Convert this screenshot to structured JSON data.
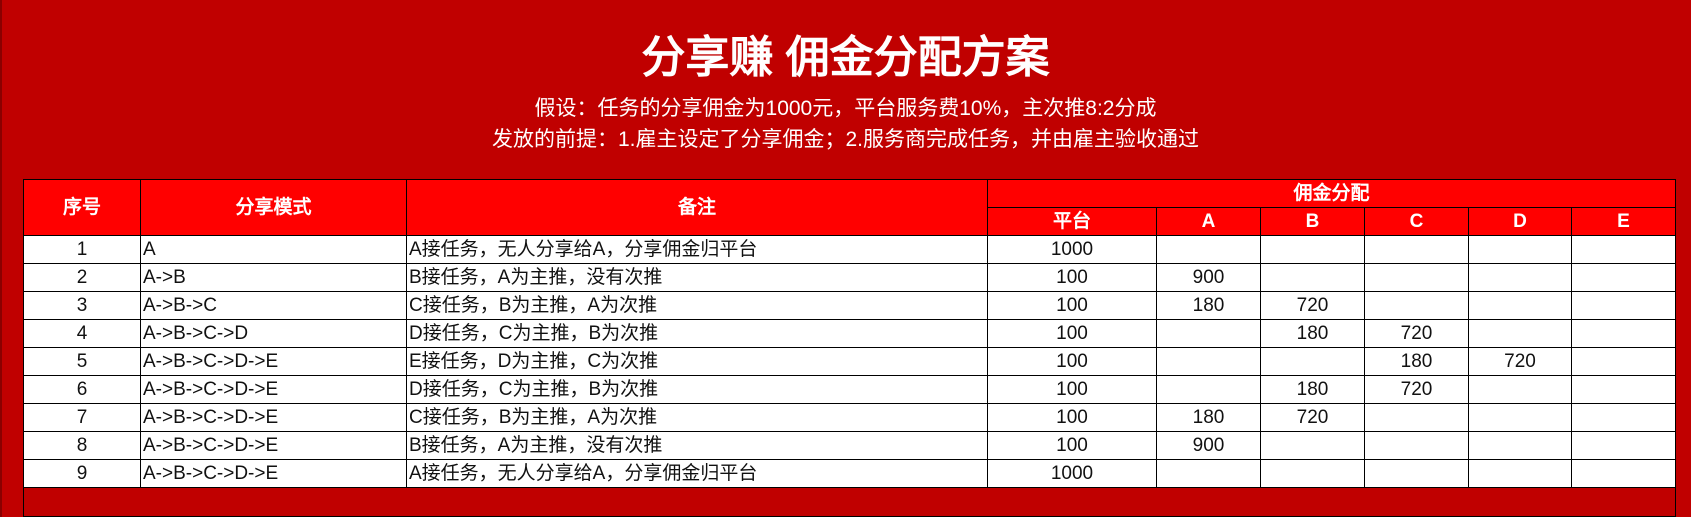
{
  "title": "分享赚 佣金分配方案",
  "subtitle_lines": [
    "假设：任务的分享佣金为1000元，平台服务费10%，主次推8:2分成",
    "发放的前提：1.雇主设定了分享佣金；2.服务商完成任务，并由雇主验收通过"
  ],
  "colors": {
    "background": "#C00000",
    "header": "#FF0000",
    "header_text": "#FFFFFF"
  },
  "table": {
    "headers": {
      "index": "序号",
      "mode": "分享模式",
      "note": "备注",
      "commission_group": "佣金分配",
      "commission_cols": [
        "平台",
        "A",
        "B",
        "C",
        "D",
        "E"
      ]
    },
    "rows": [
      {
        "index": "1",
        "mode": "A",
        "note": "A接任务，无人分享给A，分享佣金归平台",
        "values": [
          "1000",
          "",
          "",
          "",
          "",
          ""
        ]
      },
      {
        "index": "2",
        "mode": "A->B",
        "note": "B接任务，A为主推，没有次推",
        "values": [
          "100",
          "900",
          "",
          "",
          "",
          ""
        ]
      },
      {
        "index": "3",
        "mode": "A->B->C",
        "note": "C接任务，B为主推，A为次推",
        "values": [
          "100",
          "180",
          "720",
          "",
          "",
          ""
        ]
      },
      {
        "index": "4",
        "mode": "A->B->C->D",
        "note": "D接任务，C为主推，B为次推",
        "values": [
          "100",
          "",
          "180",
          "720",
          "",
          ""
        ]
      },
      {
        "index": "5",
        "mode": "A->B->C->D->E",
        "note": "E接任务，D为主推，C为次推",
        "values": [
          "100",
          "",
          "",
          "180",
          "720",
          ""
        ]
      },
      {
        "index": "6",
        "mode": "A->B->C->D->E",
        "note": "D接任务，C为主推，B为次推",
        "values": [
          "100",
          "",
          "180",
          "720",
          "",
          ""
        ]
      },
      {
        "index": "7",
        "mode": "A->B->C->D->E",
        "note": "C接任务，B为主推，A为次推",
        "values": [
          "100",
          "180",
          "720",
          "",
          "",
          ""
        ]
      },
      {
        "index": "8",
        "mode": "A->B->C->D->E",
        "note": "B接任务，A为主推，没有次推",
        "values": [
          "100",
          "900",
          "",
          "",
          "",
          ""
        ]
      },
      {
        "index": "9",
        "mode": "A->B->C->D->E",
        "note": "A接任务，无人分享给A，分享佣金归平台",
        "values": [
          "1000",
          "",
          "",
          "",
          "",
          ""
        ]
      }
    ]
  }
}
